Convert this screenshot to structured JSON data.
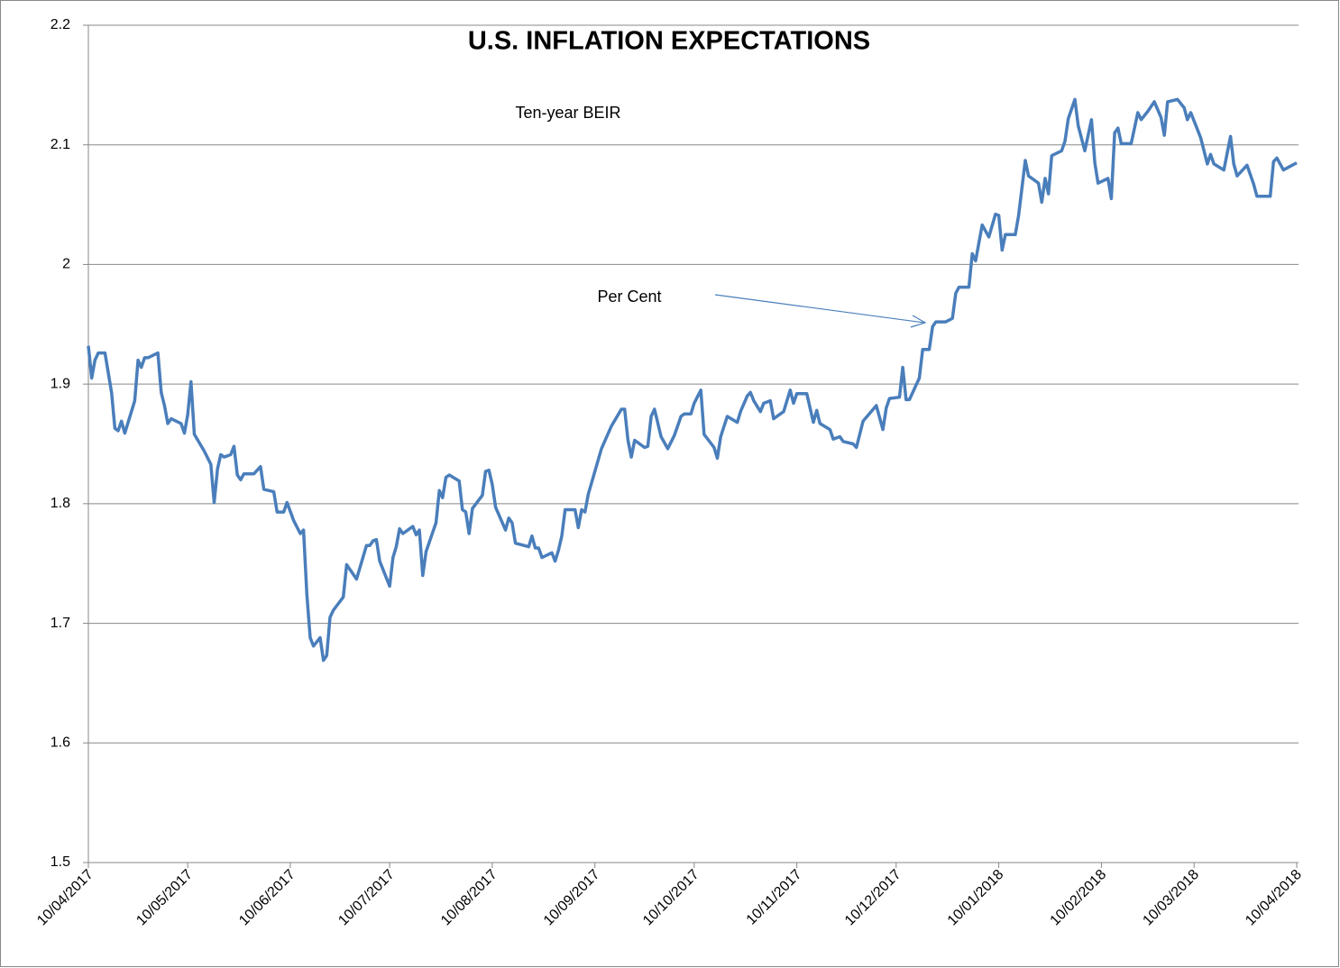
{
  "chart_data": {
    "type": "line",
    "title": "U.S. INFLATION EXPECTATIONS",
    "annotations": [
      "Ten-year BEIR",
      "Per Cent"
    ],
    "color": "#4a7ebb",
    "grid": true,
    "ylim": [
      1.5,
      2.2
    ],
    "yticks": [
      1.5,
      1.6,
      1.7,
      1.8,
      1.9,
      2,
      2.1,
      2.2
    ],
    "xlim": [
      "2017-04-10",
      "2018-04-10"
    ],
    "xticks": [
      {
        "value": "2017-04-10",
        "label": "10/04/2017"
      },
      {
        "value": "2017-05-10",
        "label": "10/05/2017"
      },
      {
        "value": "2017-06-10",
        "label": "10/06/2017"
      },
      {
        "value": "2017-07-10",
        "label": "10/07/2017"
      },
      {
        "value": "2017-08-10",
        "label": "10/08/2017"
      },
      {
        "value": "2017-09-10",
        "label": "10/09/2017"
      },
      {
        "value": "2017-10-10",
        "label": "10/10/2017"
      },
      {
        "value": "2017-11-10",
        "label": "10/11/2017"
      },
      {
        "value": "2017-12-10",
        "label": "10/12/2017"
      },
      {
        "value": "2018-01-10",
        "label": "10/01/2018"
      },
      {
        "value": "2018-02-10",
        "label": "10/02/2018"
      },
      {
        "value": "2018-03-10",
        "label": "10/03/2018"
      },
      {
        "value": "2018-04-10",
        "label": "10/04/2018"
      }
    ],
    "x": [
      "2017-04-10",
      "2017-04-11",
      "2017-04-12",
      "2017-04-13",
      "2017-04-15",
      "2017-04-17",
      "2017-04-18",
      "2017-04-19",
      "2017-04-20",
      "2017-04-21",
      "2017-04-24",
      "2017-04-25",
      "2017-04-26",
      "2017-04-27",
      "2017-04-28",
      "2017-05-01",
      "2017-05-02",
      "2017-05-03",
      "2017-05-04",
      "2017-05-05",
      "2017-05-08",
      "2017-05-09",
      "2017-05-10",
      "2017-05-11",
      "2017-05-12",
      "2017-05-15",
      "2017-05-17",
      "2017-05-18",
      "2017-05-19",
      "2017-05-20",
      "2017-05-21",
      "2017-05-23",
      "2017-05-24",
      "2017-05-25",
      "2017-05-26",
      "2017-05-27",
      "2017-05-30",
      "2017-06-01",
      "2017-06-02",
      "2017-06-05",
      "2017-06-06",
      "2017-06-08",
      "2017-06-09",
      "2017-06-11",
      "2017-06-13",
      "2017-06-14",
      "2017-06-15",
      "2017-06-16",
      "2017-06-17",
      "2017-06-19",
      "2017-06-20",
      "2017-06-21",
      "2017-06-22",
      "2017-06-23",
      "2017-06-26",
      "2017-06-27",
      "2017-06-30",
      "2017-07-03",
      "2017-07-04",
      "2017-07-05",
      "2017-07-06",
      "2017-07-07",
      "2017-07-10",
      "2017-07-11",
      "2017-07-12",
      "2017-07-13",
      "2017-07-14",
      "2017-07-17",
      "2017-07-18",
      "2017-07-19",
      "2017-07-20",
      "2017-07-21",
      "2017-07-24",
      "2017-07-25",
      "2017-07-26",
      "2017-07-27",
      "2017-07-28",
      "2017-07-31",
      "2017-08-01",
      "2017-08-02",
      "2017-08-03",
      "2017-08-04",
      "2017-08-07",
      "2017-08-08",
      "2017-08-09",
      "2017-08-10",
      "2017-08-11",
      "2017-08-14",
      "2017-08-15",
      "2017-08-16",
      "2017-08-17",
      "2017-08-21",
      "2017-08-22",
      "2017-08-23",
      "2017-08-24",
      "2017-08-25",
      "2017-08-28",
      "2017-08-29",
      "2017-08-30",
      "2017-08-31",
      "2017-09-01",
      "2017-09-04",
      "2017-09-05",
      "2017-09-06",
      "2017-09-07",
      "2017-09-08",
      "2017-09-12",
      "2017-09-15",
      "2017-09-18",
      "2017-09-19",
      "2017-09-20",
      "2017-09-21",
      "2017-09-22",
      "2017-09-25",
      "2017-09-26",
      "2017-09-27",
      "2017-09-28",
      "2017-09-30",
      "2017-10-02",
      "2017-10-04",
      "2017-10-06",
      "2017-10-07",
      "2017-10-09",
      "2017-10-10",
      "2017-10-12",
      "2017-10-13",
      "2017-10-16",
      "2017-10-17",
      "2017-10-18",
      "2017-10-20",
      "2017-10-23",
      "2017-10-24",
      "2017-10-26",
      "2017-10-27",
      "2017-10-28",
      "2017-10-30",
      "2017-10-31",
      "2017-11-02",
      "2017-11-03",
      "2017-11-06",
      "2017-11-08",
      "2017-11-09",
      "2017-11-10",
      "2017-11-13",
      "2017-11-15",
      "2017-11-16",
      "2017-11-17",
      "2017-11-20",
      "2017-11-21",
      "2017-11-23",
      "2017-11-24",
      "2017-11-27",
      "2017-11-28",
      "2017-11-30",
      "2017-12-04",
      "2017-12-06",
      "2017-12-07",
      "2017-12-08",
      "2017-12-11",
      "2017-12-12",
      "2017-12-13",
      "2017-12-14",
      "2017-12-17",
      "2017-12-18",
      "2017-12-20",
      "2017-12-21",
      "2017-12-22",
      "2017-12-25",
      "2017-12-27",
      "2017-12-28",
      "2017-12-29",
      "2018-01-01",
      "2018-01-02",
      "2018-01-03",
      "2018-01-05",
      "2018-01-07",
      "2018-01-09",
      "2018-01-10",
      "2018-01-11",
      "2018-01-12",
      "2018-01-15",
      "2018-01-16",
      "2018-01-18",
      "2018-01-19",
      "2018-01-22",
      "2018-01-23",
      "2018-01-24",
      "2018-01-25",
      "2018-01-26",
      "2018-01-29",
      "2018-01-30",
      "2018-01-31",
      "2018-02-02",
      "2018-02-03",
      "2018-02-05",
      "2018-02-07",
      "2018-02-08",
      "2018-02-09",
      "2018-02-12",
      "2018-02-13",
      "2018-02-14",
      "2018-02-15",
      "2018-02-16",
      "2018-02-19",
      "2018-02-21",
      "2018-02-22",
      "2018-02-24",
      "2018-02-26",
      "2018-02-28",
      "2018-03-01",
      "2018-03-02",
      "2018-03-05",
      "2018-03-07",
      "2018-03-08",
      "2018-03-09",
      "2018-03-12",
      "2018-03-14",
      "2018-03-15",
      "2018-03-16",
      "2018-03-19",
      "2018-03-21",
      "2018-03-22",
      "2018-03-23",
      "2018-03-26",
      "2018-03-28",
      "2018-03-29",
      "2018-04-02",
      "2018-04-03",
      "2018-04-04",
      "2018-04-06",
      "2018-04-08",
      "2018-04-10"
    ],
    "values": [
      1.932,
      1.905,
      1.92,
      1.926,
      1.926,
      1.893,
      1.863,
      1.861,
      1.869,
      1.859,
      1.886,
      1.92,
      1.914,
      1.922,
      1.922,
      1.926,
      1.893,
      1.882,
      1.867,
      1.871,
      1.867,
      1.859,
      1.874,
      1.902,
      1.858,
      1.844,
      1.833,
      1.801,
      1.829,
      1.841,
      1.839,
      1.841,
      1.848,
      1.824,
      1.82,
      1.825,
      1.825,
      1.831,
      1.812,
      1.81,
      1.793,
      1.793,
      1.801,
      1.786,
      1.775,
      1.778,
      1.724,
      1.688,
      1.681,
      1.688,
      1.669,
      1.673,
      1.705,
      1.711,
      1.722,
      1.749,
      1.737,
      1.765,
      1.765,
      1.769,
      1.77,
      1.752,
      1.731,
      1.755,
      1.764,
      1.779,
      1.775,
      1.781,
      1.774,
      1.778,
      1.74,
      1.76,
      1.784,
      1.811,
      1.805,
      1.822,
      1.824,
      1.819,
      1.795,
      1.793,
      1.775,
      1.796,
      1.807,
      1.827,
      1.828,
      1.816,
      1.797,
      1.778,
      1.788,
      1.784,
      1.767,
      1.764,
      1.773,
      1.763,
      1.763,
      1.755,
      1.759,
      1.752,
      1.761,
      1.773,
      1.795,
      1.795,
      1.78,
      1.795,
      1.793,
      1.808,
      1.846,
      1.865,
      1.879,
      1.879,
      1.853,
      1.839,
      1.853,
      1.847,
      1.848,
      1.873,
      1.879,
      1.856,
      1.846,
      1.857,
      1.873,
      1.875,
      1.875,
      1.884,
      1.895,
      1.858,
      1.847,
      1.838,
      1.856,
      1.873,
      1.868,
      1.877,
      1.89,
      1.893,
      1.886,
      1.877,
      1.884,
      1.886,
      1.871,
      1.877,
      1.895,
      1.884,
      1.892,
      1.892,
      1.868,
      1.878,
      1.867,
      1.862,
      1.854,
      1.856,
      1.852,
      1.85,
      1.847,
      1.869,
      1.882,
      1.862,
      1.88,
      1.888,
      1.889,
      1.914,
      1.887,
      1.887,
      1.905,
      1.929,
      1.929,
      1.948,
      1.952,
      1.952,
      1.955,
      1.976,
      1.981,
      1.981,
      2.009,
      2.003,
      2.033,
      2.023,
      2.042,
      2.041,
      2.012,
      2.025,
      2.025,
      2.041,
      2.087,
      2.074,
      2.068,
      2.052,
      2.072,
      2.059,
      2.091,
      2.095,
      2.103,
      2.122,
      2.138,
      2.116,
      2.095,
      2.121,
      2.085,
      2.068,
      2.072,
      2.055,
      2.11,
      2.114,
      2.101,
      2.101,
      2.127,
      2.121,
      2.128,
      2.136,
      2.123,
      2.108,
      2.136,
      2.138,
      2.131,
      2.121,
      2.127,
      2.106,
      2.084,
      2.092,
      2.084,
      2.079,
      2.107,
      2.084,
      2.074,
      2.083,
      2.067,
      2.057,
      2.057,
      2.086,
      2.089,
      2.079,
      2.082,
      2.085
    ]
  }
}
